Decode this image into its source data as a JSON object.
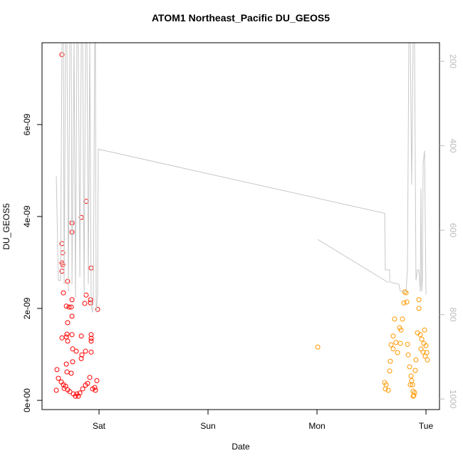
{
  "chart_data": {
    "type": "scatter",
    "title": "ATOM1 Northeast_Pacific DU_GEOS5",
    "x_label": "Date",
    "y_label": "DU_GEOS5",
    "xlim": [
      -0.523,
      3.124
    ],
    "xticks": [
      {
        "value": 0,
        "label": "Sat"
      },
      {
        "value": 1,
        "label": "Sun"
      },
      {
        "value": 2,
        "label": "Mon"
      },
      {
        "value": 3,
        "label": "Tue"
      }
    ],
    "ylim": [
      -2e-10,
      7.78e-09
    ],
    "yticks": [
      {
        "value": 0,
        "label": "0e+00"
      },
      {
        "value": 2e-09,
        "label": "2e-09"
      },
      {
        "value": 4e-09,
        "label": "4e-09"
      },
      {
        "value": 6e-09,
        "label": "6e-09"
      }
    ],
    "y2lim": [
      1025,
      156
    ],
    "y2ticks": [
      200,
      400,
      600,
      800,
      1000
    ],
    "y2_color": "#bbbbbb",
    "series": [
      {
        "color": "#ff0000",
        "x": [
          -0.34,
          -0.34,
          -0.333,
          -0.34,
          -0.333,
          -0.34,
          -0.288,
          -0.327,
          -0.3,
          -0.275,
          -0.248,
          -0.248,
          -0.163,
          -0.118,
          -0.072,
          -0.248,
          -0.255,
          -0.118,
          -0.131,
          -0.078,
          -0.078,
          -0.013,
          -0.288,
          -0.294,
          -0.3,
          -0.248,
          -0.248,
          -0.34,
          -0.288,
          -0.163,
          -0.072,
          -0.072,
          -0.072,
          -0.242,
          -0.124,
          -0.072,
          -0.157,
          -0.163,
          -0.209,
          -0.242,
          -0.3,
          -0.386,
          -0.294,
          -0.255,
          -0.373,
          -0.346,
          -0.327,
          -0.307,
          -0.392,
          -0.32,
          -0.288,
          -0.268,
          -0.235,
          -0.216,
          -0.203,
          -0.19,
          -0.176,
          -0.15,
          -0.124,
          -0.105,
          -0.085,
          -0.059,
          -0.039,
          -0.02,
          -0.033
        ],
        "values": [
          7.52e-09,
          3.41e-09,
          3.21e-09,
          2.99e-09,
          2.95e-09,
          2.81e-09,
          2.59e-09,
          2.34e-09,
          2.05e-09,
          2.03e-09,
          3.86e-09,
          3.66e-09,
          3.98e-09,
          4.33e-09,
          2.88e-09,
          2.19e-09,
          2.03e-09,
          2.29e-09,
          2.11e-09,
          2.19e-09,
          2.12e-09,
          1.98e-09,
          1.69e-09,
          1.44e-09,
          1.38e-09,
          1.43e-09,
          1.83e-09,
          1.36e-09,
          1.29e-09,
          1.4e-09,
          1.43e-09,
          1.35e-09,
          1.29e-09,
          1.12e-09,
          1.07e-09,
          1.05e-09,
          9.9e-10,
          9.1e-10,
          1.07e-09,
          8.4e-10,
          7.9e-10,
          6.7e-10,
          6.2e-10,
          5.9e-10,
          4.8e-10,
          4e-10,
          3.4e-10,
          3.1e-10,
          2.2e-10,
          2.6e-10,
          2.3e-10,
          1.9e-10,
          1.4e-10,
          9e-11,
          1.4e-10,
          9e-11,
          1.6e-10,
          2.5e-10,
          3.3e-10,
          3.7e-10,
          5e-10,
          2.5e-10,
          2.8e-10,
          4.3e-10,
          2.2e-10
        ]
      },
      {
        "color": "#ff9900",
        "x": [
          2.007,
          2.621,
          2.627,
          2.654,
          2.634,
          2.667,
          2.673,
          2.68,
          2.699,
          2.699,
          2.712,
          2.725,
          2.739,
          2.758,
          2.771,
          2.784,
          2.797,
          2.804,
          2.817,
          2.824,
          2.83,
          2.837,
          2.85,
          2.863,
          2.869,
          2.876,
          2.882,
          2.889,
          2.882,
          2.895,
          2.902,
          2.908,
          2.922,
          2.935,
          2.935,
          2.948,
          2.954,
          2.961,
          2.974,
          2.98,
          2.987,
          2.993,
          3.0,
          3.007,
          3.013,
          2.765,
          2.856
        ],
        "values": [
          1.16e-09,
          3.9e-10,
          2.5e-10,
          2.2e-10,
          3.4e-10,
          6.4e-10,
          8.5e-10,
          1.21e-09,
          1.4e-09,
          1.12e-09,
          1.77e-09,
          1.26e-09,
          1.04e-09,
          1.58e-09,
          1.53e-09,
          1.77e-09,
          2.12e-09,
          2.36e-09,
          2.34e-09,
          2.14e-09,
          1.22e-09,
          9.9e-10,
          7.3e-10,
          5.3e-10,
          4.3e-10,
          3.4e-10,
          2e-10,
          1.1e-10,
          9e-11,
          1.7e-10,
          6.5e-10,
          8.8e-10,
          1.47e-09,
          2e-09,
          2.19e-09,
          1.43e-09,
          1.12e-09,
          1.33e-09,
          1.05e-09,
          1.24e-09,
          1.53e-09,
          9.6e-10,
          1.19e-09,
          1.04e-09,
          8.8e-10,
          1.24e-09,
          3.4e-10
        ]
      },
      {
        "color": "#c8c8c8",
        "axis": "y2",
        "line": true,
        "x": [
          -0.392,
          -0.373,
          -0.353,
          -0.34,
          -0.327,
          -0.32,
          -0.307,
          -0.294,
          -0.281,
          -0.268,
          -0.255,
          -0.248,
          -0.229,
          -0.216,
          -0.203,
          -0.19,
          -0.176,
          -0.163,
          -0.15,
          -0.137,
          -0.124,
          -0.111,
          -0.098,
          -0.085,
          -0.072,
          -0.059,
          -0.052,
          -0.039,
          -0.033,
          -0.026,
          -0.013,
          -0.007,
          2.621,
          2.627,
          2.667,
          2.667,
          2.752,
          2.765,
          2.817,
          2.83,
          2.843,
          2.856,
          2.869,
          2.882,
          2.895,
          2.908,
          2.922,
          2.935,
          2.948,
          2.954,
          2.961,
          2.967,
          2.974,
          2.987,
          3.0,
          null,
          2.007,
          2.654
        ],
        "values": [
          472,
          719,
          719,
          156,
          156,
          728,
          156,
          156,
          745,
          156,
          156,
          728,
          156,
          761,
          156,
          156,
          711,
          156,
          156,
          753,
          156,
          156,
          728,
          156,
          778,
          795,
          761,
          156,
          156,
          795,
          753,
          408,
          560,
          694,
          694,
          723,
          728,
          745,
          745,
          694,
          150,
          150,
          492,
          150,
          150,
          719,
          694,
          694,
          745,
          501,
          745,
          719,
          442,
          412,
          753,
          null,
          622,
          724
        ]
      }
    ]
  }
}
